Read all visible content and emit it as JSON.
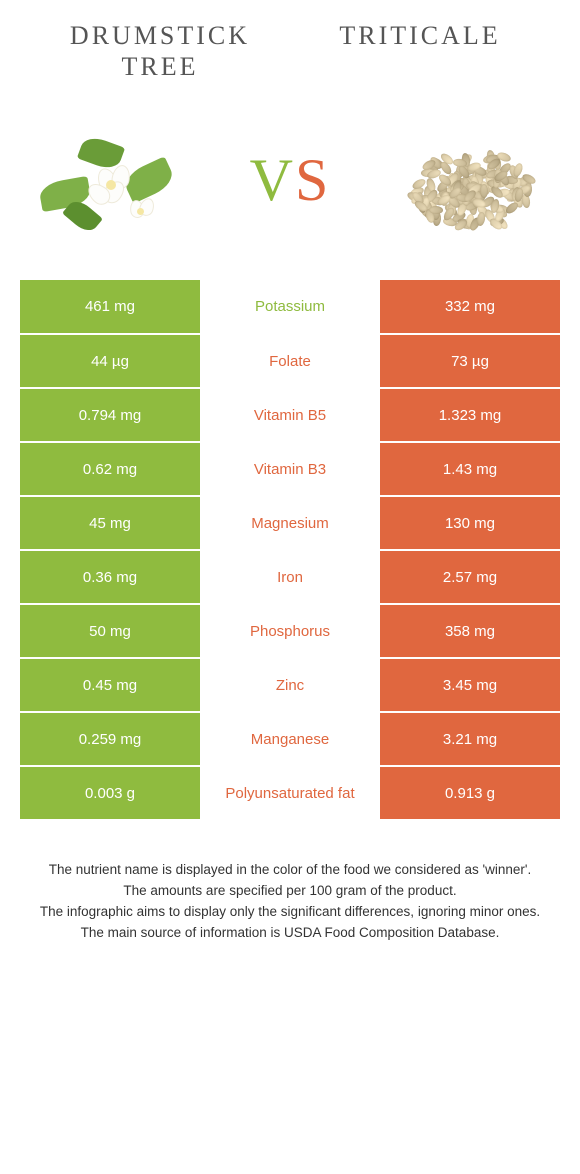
{
  "titles": {
    "left": "Drumstick tree",
    "right": "Triticale"
  },
  "vs": {
    "v": "V",
    "s": "S"
  },
  "colors": {
    "left": "#8fbb3f",
    "right": "#e0673f",
    "left_text": "#ffffff",
    "right_text": "#ffffff"
  },
  "rows": [
    {
      "left": "461 mg",
      "label": "Potassium",
      "right": "332 mg",
      "winner": "left"
    },
    {
      "left": "44 µg",
      "label": "Folate",
      "right": "73 µg",
      "winner": "right"
    },
    {
      "left": "0.794 mg",
      "label": "Vitamin B5",
      "right": "1.323 mg",
      "winner": "right"
    },
    {
      "left": "0.62 mg",
      "label": "Vitamin B3",
      "right": "1.43 mg",
      "winner": "right"
    },
    {
      "left": "45 mg",
      "label": "Magnesium",
      "right": "130 mg",
      "winner": "right"
    },
    {
      "left": "0.36 mg",
      "label": "Iron",
      "right": "2.57 mg",
      "winner": "right"
    },
    {
      "left": "50 mg",
      "label": "Phosphorus",
      "right": "358 mg",
      "winner": "right"
    },
    {
      "left": "0.45 mg",
      "label": "Zinc",
      "right": "3.45 mg",
      "winner": "right"
    },
    {
      "left": "0.259 mg",
      "label": "Manganese",
      "right": "3.21 mg",
      "winner": "right"
    },
    {
      "left": "0.003 g",
      "label": "Polyunsaturated fat",
      "right": "0.913 g",
      "winner": "right"
    }
  ],
  "footnotes": [
    "The nutrient name is displayed in the color of the food we considered as 'winner'.",
    "The amounts are specified per 100 gram of the product.",
    "The infographic aims to display only the significant differences, ignoring minor ones.",
    "The main source of information is USDA Food Composition Database."
  ]
}
